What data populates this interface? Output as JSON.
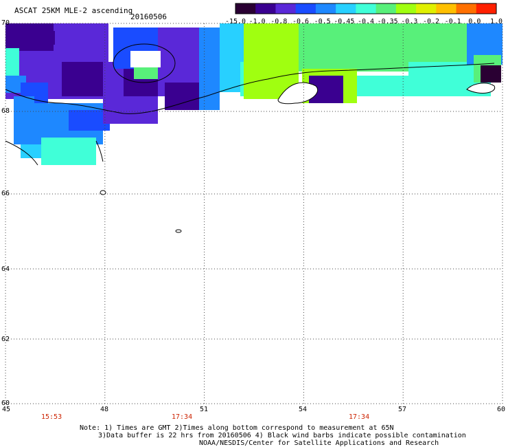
{
  "header": {
    "title": "ASCAT 25KM MLE-2 ascending",
    "date": "20160506"
  },
  "colorbar": {
    "labels": [
      "-15.0",
      "-1.0",
      "-0.8",
      "-0.6",
      "-0.5",
      "-0.45",
      "-0.4",
      "-0.35",
      "-0.3",
      "-0.2",
      "-0.1",
      "0.0",
      "1.0"
    ],
    "colors": [
      "#2a0033",
      "#3a0090",
      "#5a28d8",
      "#1a4cff",
      "#1e88ff",
      "#28d0ff",
      "#40ffd8",
      "#58f07a",
      "#a0ff10",
      "#e0f000",
      "#ffc000",
      "#ff7000",
      "#ff2000"
    ]
  },
  "map": {
    "lat_labels": [
      "70",
      "68",
      "66",
      "64",
      "62",
      "60"
    ],
    "lon_labels": [
      "45",
      "48",
      "51",
      "54",
      "57",
      "60"
    ],
    "time_labels": [
      "15:53",
      "17:34",
      "17:34"
    ],
    "lon_range": [
      45,
      60
    ],
    "lat_range": [
      60,
      70
    ]
  },
  "footer": {
    "note1": "Note: 1) Times are GMT 2)Times along bottom correspond to measurement at 65N",
    "note2": "3)Data buffer is 22 hrs from 20160506 4) Black wind barbs indicate possible contamination",
    "credit": "NOAA/NESDIS/Center for Satellite Applications and Research"
  }
}
